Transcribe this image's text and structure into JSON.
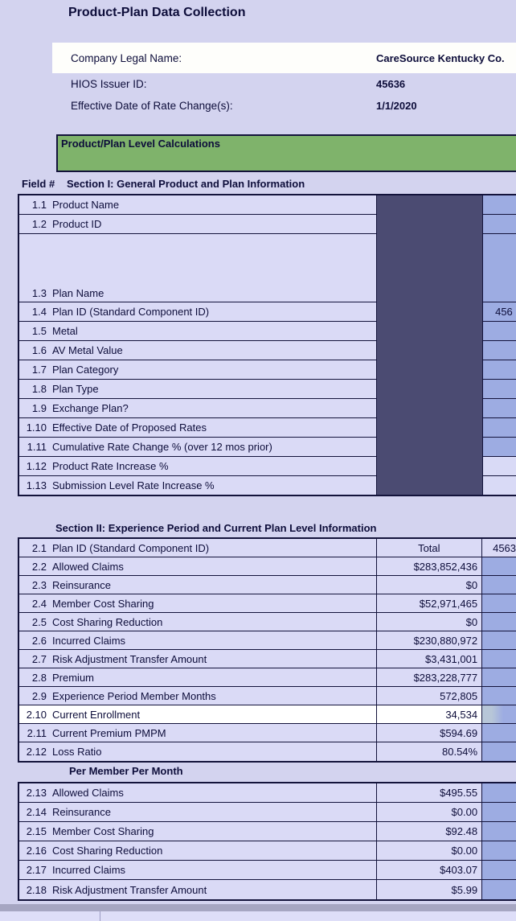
{
  "header": {
    "title": "Product-Plan Data Collection",
    "fields": [
      {
        "label": "Company Legal Name:",
        "value": "CareSource Kentucky Co."
      },
      {
        "label": "HIOS Issuer ID:",
        "value": "45636"
      },
      {
        "label": "Effective Date of Rate Change(s):",
        "value": "1/1/2020"
      }
    ]
  },
  "banner": {
    "title": "Product/Plan Level Calculations"
  },
  "section1": {
    "field_col_header": "Field #",
    "heading": "Section I: General Product and Plan Information",
    "rows": [
      {
        "num": "1.1",
        "label": "Product Name",
        "plan": ""
      },
      {
        "num": "1.2",
        "label": "Product ID",
        "plan": ""
      },
      {
        "num": "1.3",
        "label": "Plan Name",
        "plan": "",
        "tall": true
      },
      {
        "num": "1.4",
        "label": "Plan ID (Standard Component ID)",
        "plan": "456"
      },
      {
        "num": "1.5",
        "label": "Metal",
        "plan": ""
      },
      {
        "num": "1.6",
        "label": "AV Metal Value",
        "plan": ""
      },
      {
        "num": "1.7",
        "label": "Plan Category",
        "plan": ""
      },
      {
        "num": "1.8",
        "label": "Plan Type",
        "plan": ""
      },
      {
        "num": "1.9",
        "label": "Exchange Plan?",
        "plan": ""
      },
      {
        "num": "1.10",
        "label": "Effective Date of Proposed Rates",
        "plan": ""
      },
      {
        "num": "1.11",
        "label": "Cumulative Rate Change %  (over 12 mos prior)",
        "plan": ""
      },
      {
        "num": "1.12",
        "label": "Product Rate Increase %",
        "plan": "",
        "light": true
      },
      {
        "num": "1.13",
        "label": "Submission Level Rate Increase %",
        "plan": "",
        "light": true
      }
    ]
  },
  "section2": {
    "heading": "Section II: Experience Period and Current Plan Level Information",
    "rows": [
      {
        "num": "2.1",
        "label": "Plan ID (Standard Component ID)",
        "total": "Total",
        "plan": "4563",
        "header_row": true
      },
      {
        "num": "2.2",
        "label": "Allowed Claims",
        "total": "$283,852,436"
      },
      {
        "num": "2.3",
        "label": "Reinsurance",
        "total": "$0"
      },
      {
        "num": "2.4",
        "label": "Member Cost Sharing",
        "total": "$52,971,465"
      },
      {
        "num": "2.5",
        "label": "Cost Sharing Reduction",
        "total": "$0"
      },
      {
        "num": "2.6",
        "label": "Incurred Claims",
        "total": "$230,880,972"
      },
      {
        "num": "2.7",
        "label": "Risk Adjustment Transfer Amount",
        "total": "$3,431,001"
      },
      {
        "num": "2.8",
        "label": "Premium",
        "total": "$283,228,777"
      },
      {
        "num": "2.9",
        "label": "Experience Period Member Months",
        "total": "572,805"
      },
      {
        "num": "2.10",
        "label": "Current Enrollment",
        "total": "34,534",
        "selected": true
      },
      {
        "num": "2.11",
        "label": "Current Premium PMPM",
        "total": "$594.69"
      },
      {
        "num": "2.12",
        "label": "Loss Ratio",
        "total": "80.54%"
      }
    ],
    "pmpm_heading": "Per Member Per Month",
    "pmpm_rows": [
      {
        "num": "2.13",
        "label": "Allowed Claims",
        "total": "$495.55"
      },
      {
        "num": "2.14",
        "label": "Reinsurance",
        "total": "$0.00"
      },
      {
        "num": "2.15",
        "label": "Member Cost Sharing",
        "total": "$92.48"
      },
      {
        "num": "2.16",
        "label": "Cost Sharing Reduction",
        "total": "$0.00"
      },
      {
        "num": "2.17",
        "label": "Incurred Claims",
        "total": "$403.07"
      },
      {
        "num": "2.18",
        "label": "Risk Adjustment Transfer Amount",
        "total": "$5.99"
      }
    ]
  },
  "colors": {
    "page_bg": "#D3D3EF",
    "cell_lavender": "#DADAF6",
    "plan_col_blue": "#9DACE2",
    "masked_col_slate": "#4B4B72",
    "banner_green": "#7FB36B",
    "selected_row_white": "#FFFFFF",
    "border_navy": "#13133B",
    "text_navy": "#0D0D3A",
    "split_bar_gray": "#A6A6C2",
    "bottom_strip": "#DEDEF8"
  }
}
